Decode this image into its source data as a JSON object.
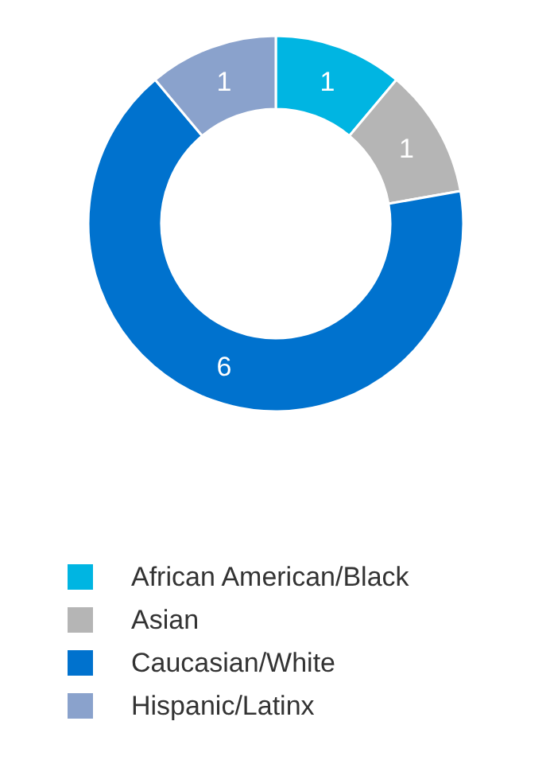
{
  "chart_data": {
    "type": "donut",
    "categories": [
      "African American/Black",
      "Asian",
      "Caucasian/White",
      "Hispanic/Latinx"
    ],
    "values": [
      1,
      1,
      6,
      1
    ],
    "colors": [
      "#00b5e2",
      "#b5b5b5",
      "#0072ce",
      "#8aa2cc"
    ],
    "data_labels": true,
    "legend": "bottom"
  }
}
